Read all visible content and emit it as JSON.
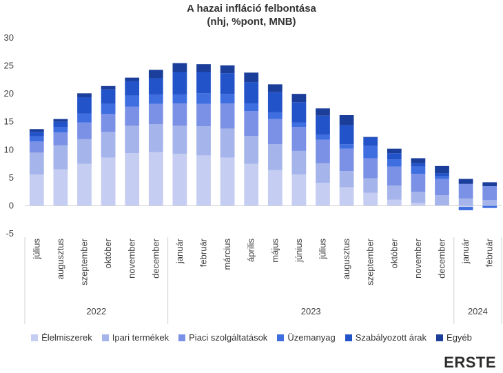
{
  "chart_data": {
    "type": "bar",
    "stacked": true,
    "title": "A hazai infláció felbontása",
    "subtitle": "(nhj, %pont, MNB)",
    "xlabel": "",
    "ylabel": "",
    "ylim": [
      -5,
      30
    ],
    "yticks": [
      -5,
      0,
      5,
      10,
      15,
      20,
      25,
      30
    ],
    "grid": false,
    "legend_position": "bottom",
    "categories": [
      "július",
      "augusztus",
      "szeptember",
      "október",
      "november",
      "december",
      "január",
      "február",
      "március",
      "április",
      "május",
      "június",
      "július",
      "augusztus",
      "szeptember",
      "október",
      "november",
      "december",
      "január",
      "február"
    ],
    "year_groups": [
      {
        "label": "2022",
        "start": 0,
        "end": 5
      },
      {
        "label": "2023",
        "start": 6,
        "end": 17
      },
      {
        "label": "2024",
        "start": 18,
        "end": 19
      }
    ],
    "series": [
      {
        "name": "Élelmiszerek",
        "color": "#c5cdf2",
        "values": [
          5.6,
          6.5,
          7.5,
          8.6,
          9.4,
          9.6,
          9.3,
          9.0,
          8.6,
          7.5,
          6.4,
          5.6,
          4.1,
          3.3,
          2.3,
          1.1,
          0.5,
          0.1,
          -0.2,
          0.1
        ]
      },
      {
        "name": "Ipari termékek",
        "color": "#a5b4ea",
        "values": [
          3.9,
          4.3,
          4.4,
          4.6,
          4.9,
          5.0,
          5.0,
          5.2,
          5.2,
          5.0,
          4.6,
          4.2,
          3.5,
          2.9,
          2.6,
          2.5,
          2.0,
          1.8,
          1.3,
          0.9
        ]
      },
      {
        "name": "Piaci szolgáltatások",
        "color": "#7b91e6",
        "values": [
          2.0,
          2.3,
          3.0,
          3.2,
          3.4,
          3.6,
          4.0,
          4.0,
          4.5,
          4.4,
          4.5,
          4.3,
          4.2,
          4.0,
          3.6,
          3.4,
          3.2,
          2.9,
          2.6,
          2.5
        ]
      },
      {
        "name": "Üzemanyag",
        "color": "#3f6ee0",
        "values": [
          0.9,
          1.0,
          1.6,
          1.8,
          2.0,
          1.7,
          1.6,
          1.9,
          1.7,
          1.4,
          1.2,
          0.8,
          0.9,
          0.8,
          2.2,
          1.3,
          1.3,
          0.5,
          -0.6,
          -0.4
        ]
      },
      {
        "name": "Szabályozott árak",
        "color": "#2353c9",
        "values": [
          0.8,
          0.9,
          2.9,
          2.6,
          2.6,
          2.9,
          4.0,
          3.8,
          3.7,
          3.8,
          3.6,
          3.6,
          3.4,
          3.4,
          1.5,
          1.1,
          0.6,
          0.5,
          0.0,
          0.0
        ]
      },
      {
        "name": "Egyéb",
        "color": "#1b3e9b",
        "values": [
          0.5,
          0.5,
          0.7,
          0.6,
          0.6,
          1.5,
          1.6,
          1.4,
          1.4,
          1.7,
          1.4,
          1.5,
          1.3,
          1.8,
          0.1,
          0.8,
          0.9,
          1.3,
          0.9,
          0.7
        ]
      }
    ]
  },
  "logo_text": "ERSTE"
}
